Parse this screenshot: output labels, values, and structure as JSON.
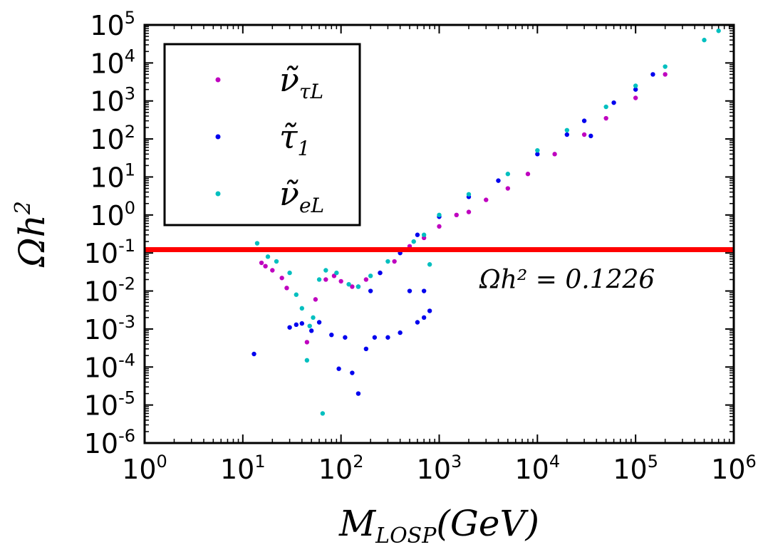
{
  "chart_data": {
    "type": "scatter",
    "title": "",
    "xscale": "log",
    "yscale": "log",
    "xlim": [
      1,
      1000000
    ],
    "ylim": [
      1e-06,
      100000
    ],
    "xlabel": {
      "main": "M",
      "sub": "LOSP",
      "rest": "(GeV)"
    },
    "ylabel": {
      "main": "Ωh",
      "sup": "2"
    },
    "x_ticks": [
      {
        "base": "10",
        "exp": "0"
      },
      {
        "base": "10",
        "exp": "1"
      },
      {
        "base": "10",
        "exp": "2"
      },
      {
        "base": "10",
        "exp": "3"
      },
      {
        "base": "10",
        "exp": "4"
      },
      {
        "base": "10",
        "exp": "5"
      },
      {
        "base": "10",
        "exp": "6"
      }
    ],
    "y_ticks": [
      {
        "base": "10",
        "exp": "-6"
      },
      {
        "base": "10",
        "exp": "-5"
      },
      {
        "base": "10",
        "exp": "-4"
      },
      {
        "base": "10",
        "exp": "-3"
      },
      {
        "base": "10",
        "exp": "-2"
      },
      {
        "base": "10",
        "exp": "-1"
      },
      {
        "base": "10",
        "exp": "0"
      },
      {
        "base": "10",
        "exp": "1"
      },
      {
        "base": "10",
        "exp": "2"
      },
      {
        "base": "10",
        "exp": "3"
      },
      {
        "base": "10",
        "exp": "4"
      },
      {
        "base": "10",
        "exp": "5"
      }
    ],
    "hline": {
      "y": 0.1226,
      "color": "#ff0000"
    },
    "annotation": {
      "text": "Ωh² = 0.1226",
      "x": 5000,
      "y": 0.02
    },
    "legend": {
      "position": "top-left",
      "entries": [
        {
          "main": "ν̃",
          "sub": "τL",
          "color": "#bf00bf"
        },
        {
          "main": "τ̃",
          "sub": "1",
          "color": "#0000ee"
        },
        {
          "main": "ν̃",
          "sub": "eL",
          "color": "#00bfbf"
        }
      ]
    },
    "series": [
      {
        "name": "ν̃τL",
        "color": "#bf00bf",
        "points": [
          [
            15.5,
            0.055
          ],
          [
            17.0,
            0.045
          ],
          [
            20.0,
            0.035
          ],
          [
            25.0,
            0.022
          ],
          [
            28.0,
            0.012
          ],
          [
            45.0,
            0.00045
          ],
          [
            55.0,
            0.006
          ],
          [
            70.0,
            0.02
          ],
          [
            85.0,
            0.025
          ],
          [
            100.0,
            0.018
          ],
          [
            130.0,
            0.013
          ],
          [
            180.0,
            0.02
          ],
          [
            250.0,
            0.03
          ],
          [
            350.0,
            0.06
          ],
          [
            500.0,
            0.15
          ],
          [
            700.0,
            0.25
          ],
          [
            1000.0,
            0.5
          ],
          [
            1500.0,
            1.0
          ],
          [
            2000.0,
            1.2
          ],
          [
            3000.0,
            2.5
          ],
          [
            5000.0,
            5.0
          ],
          [
            8000.0,
            12.0
          ],
          [
            15000.0,
            40.0
          ],
          [
            30000.0,
            130.0
          ],
          [
            50000.0,
            350.0
          ],
          [
            100000.0,
            1200.0
          ],
          [
            200000.0,
            5000.0
          ]
        ]
      },
      {
        "name": "τ̃1",
        "color": "#0000ee",
        "points": [
          [
            13.0,
            0.00022
          ],
          [
            30.0,
            0.0011
          ],
          [
            35.0,
            0.0013
          ],
          [
            40.0,
            0.0014
          ],
          [
            50.0,
            0.0009
          ],
          [
            60.0,
            0.0015
          ],
          [
            80.0,
            0.0007
          ],
          [
            95.0,
            9e-05
          ],
          [
            110.0,
            0.0006
          ],
          [
            130.0,
            7e-05
          ],
          [
            150.0,
            2e-05
          ],
          [
            180.0,
            0.0003
          ],
          [
            220.0,
            0.0006
          ],
          [
            300.0,
            0.0006
          ],
          [
            400.0,
            0.0008
          ],
          [
            600.0,
            0.0015
          ],
          [
            700.0,
            0.002
          ],
          [
            800.0,
            0.003
          ],
          [
            700.0,
            0.01
          ],
          [
            500.0,
            0.01
          ],
          [
            200.0,
            0.01
          ],
          [
            150.0,
            0.013
          ],
          [
            250.0,
            0.03
          ],
          [
            400.0,
            0.1
          ],
          [
            600.0,
            0.3
          ],
          [
            1000.0,
            0.9
          ],
          [
            2000.0,
            3.0
          ],
          [
            4000.0,
            8.0
          ],
          [
            10000.0,
            40.0
          ],
          [
            20000.0,
            130.0
          ],
          [
            30000.0,
            300.0
          ],
          [
            35000.0,
            120.0
          ],
          [
            60000.0,
            900.0
          ],
          [
            100000.0,
            2000.0
          ],
          [
            150000.0,
            5000.0
          ]
        ]
      },
      {
        "name": "ν̃eL",
        "color": "#00bfbf",
        "points": [
          [
            14.0,
            0.18
          ],
          [
            18.0,
            0.08
          ],
          [
            22.0,
            0.06
          ],
          [
            30.0,
            0.03
          ],
          [
            35.0,
            0.008
          ],
          [
            40.0,
            0.0035
          ],
          [
            45.0,
            0.00015
          ],
          [
            48.0,
            0.0012
          ],
          [
            52.0,
            0.002
          ],
          [
            60.0,
            0.02
          ],
          [
            65.0,
            6e-06
          ],
          [
            70.0,
            0.035
          ],
          [
            90.0,
            0.03
          ],
          [
            120.0,
            0.015
          ],
          [
            150.0,
            0.013
          ],
          [
            200.0,
            0.025
          ],
          [
            300.0,
            0.06
          ],
          [
            400.0,
            0.12
          ],
          [
            550.0,
            0.2
          ],
          [
            700.0,
            0.3
          ],
          [
            800.0,
            0.05
          ],
          [
            1000.0,
            1.0
          ],
          [
            2000.0,
            3.5
          ],
          [
            5000.0,
            12.0
          ],
          [
            10000.0,
            50.0
          ],
          [
            20000.0,
            170.0
          ],
          [
            50000.0,
            700.0
          ],
          [
            100000.0,
            2500.0
          ],
          [
            200000.0,
            8000.0
          ],
          [
            500000.0,
            40000.0
          ],
          [
            700000.0,
            70000.0
          ]
        ]
      }
    ]
  }
}
